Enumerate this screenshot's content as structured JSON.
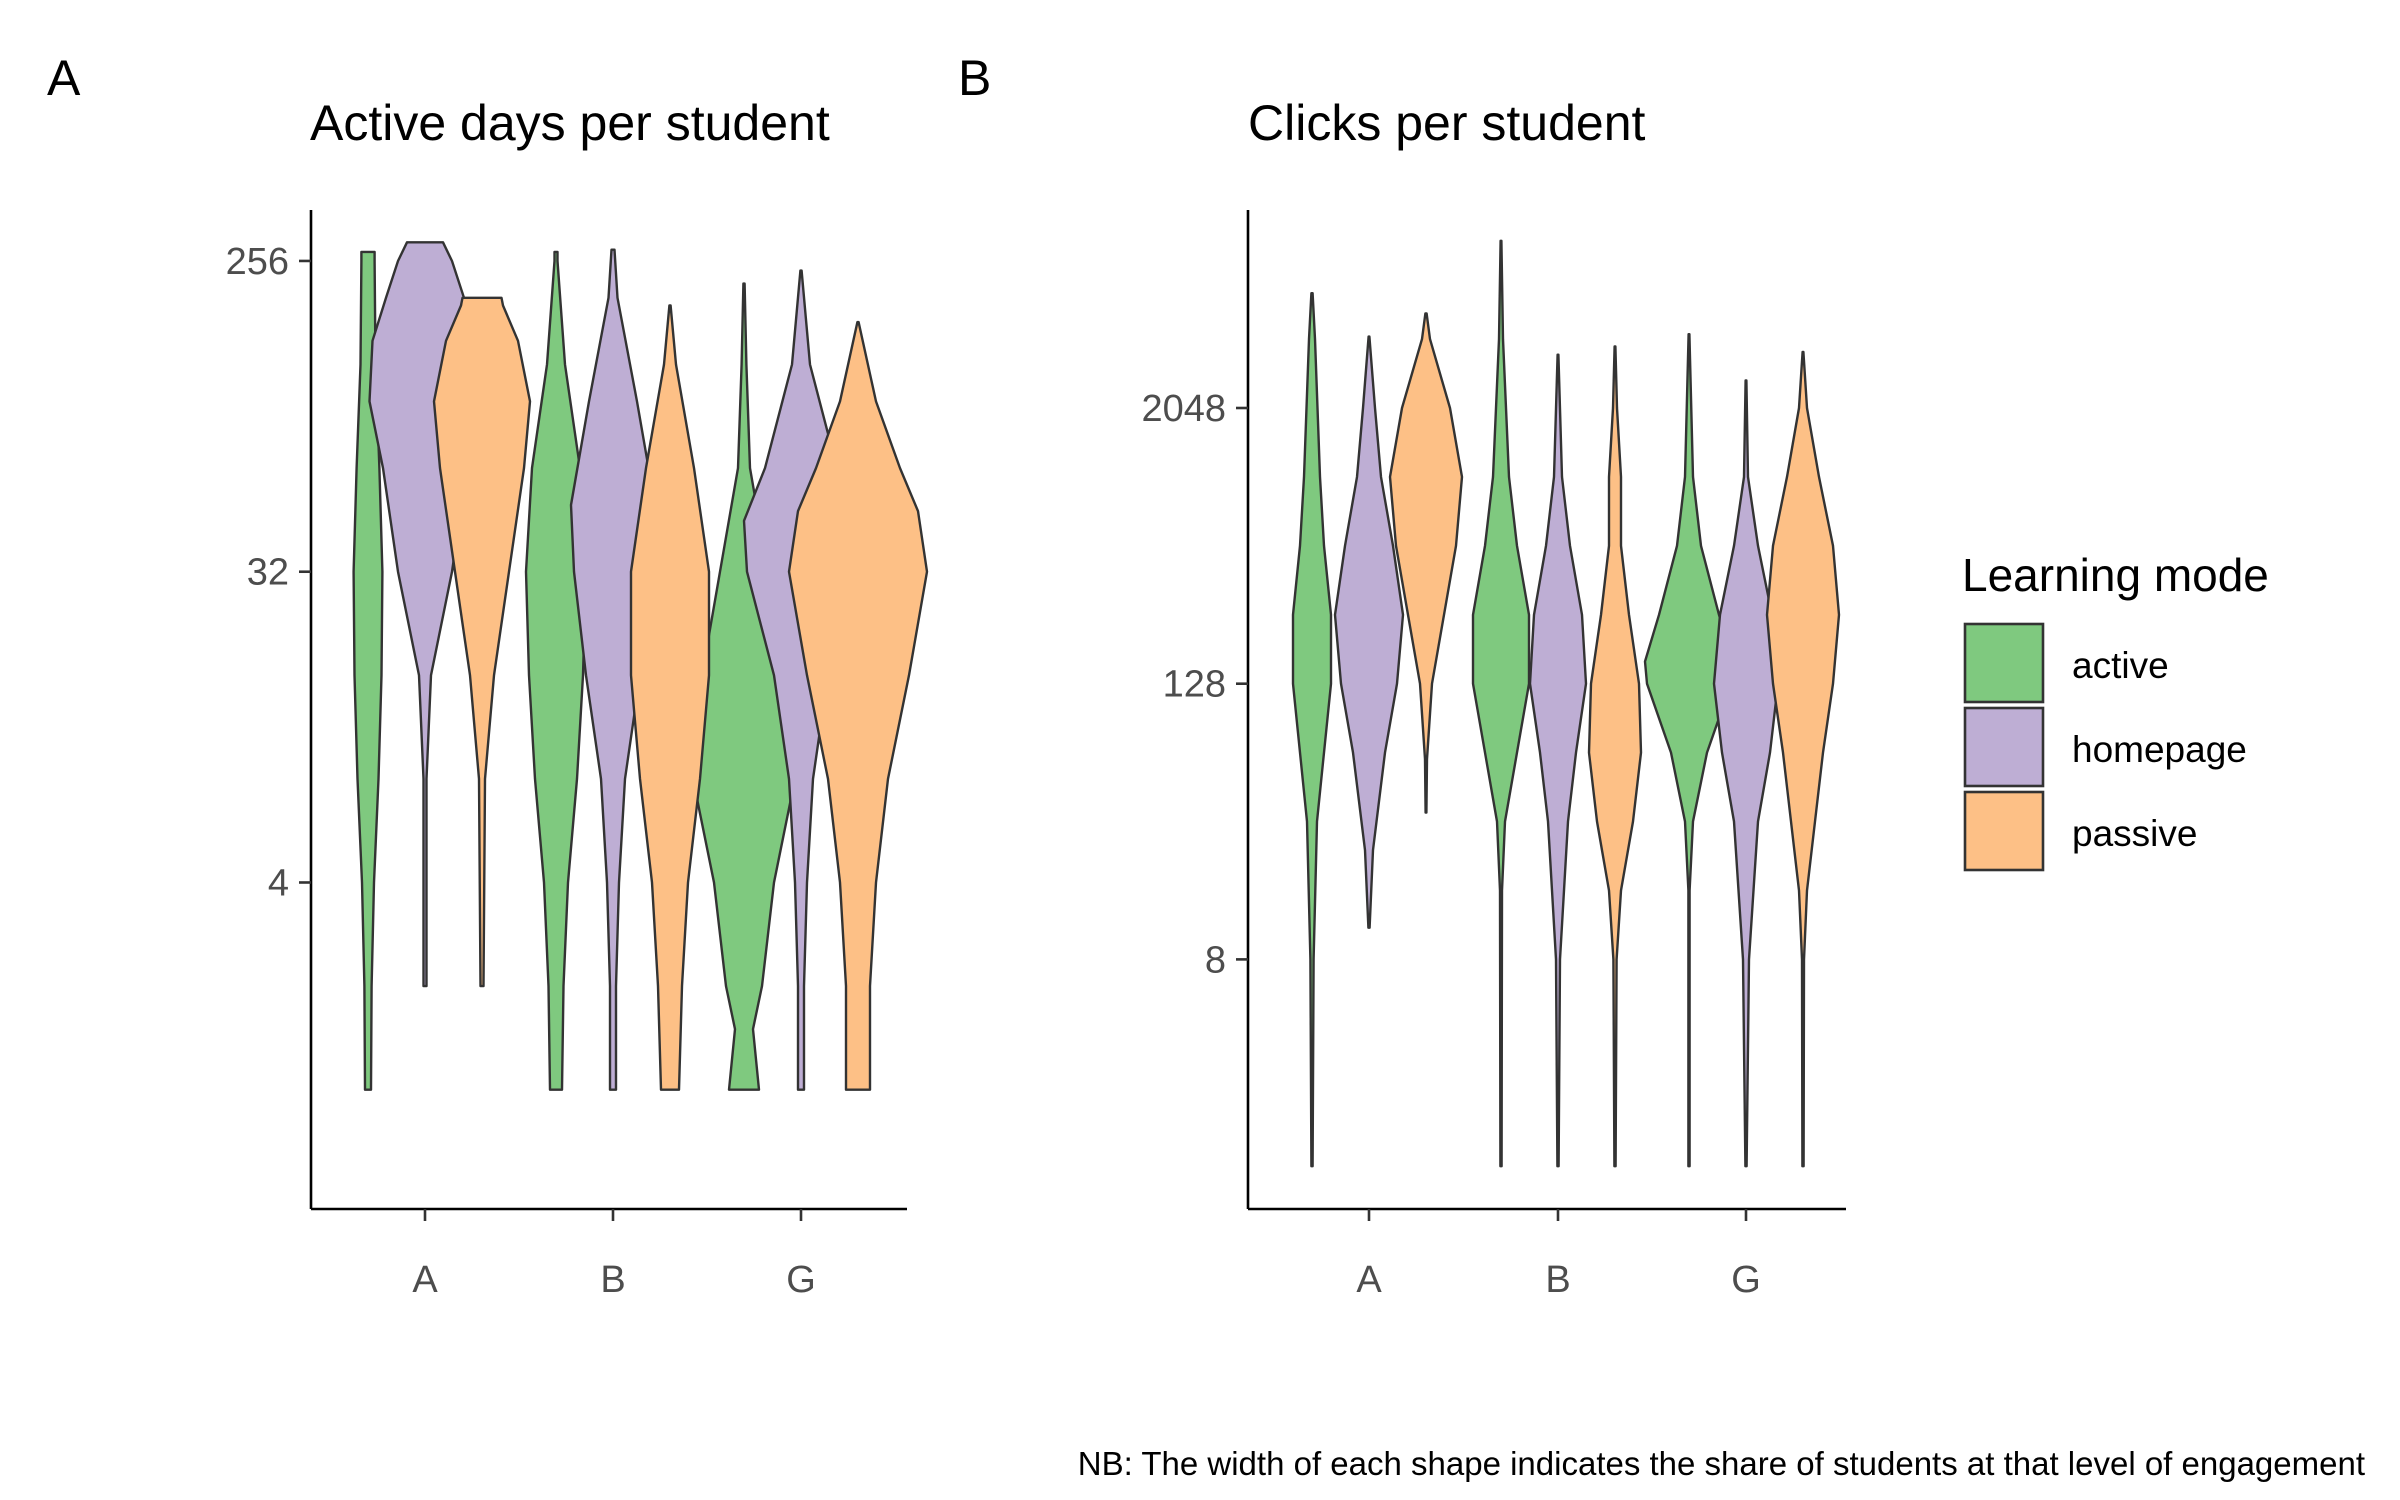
{
  "chart_data": [
    {
      "type": "violin",
      "panel_letter": "A",
      "title": "Active days per student",
      "xlabel": "",
      "ylabel": "",
      "y_scale": "log2",
      "y_ticks": [
        4,
        32,
        256
      ],
      "y_tick_labels": [
        "4",
        "32",
        "256"
      ],
      "ylim": [
        0.45,
        360
      ],
      "categories": [
        "A",
        "B",
        "G"
      ],
      "series": [
        {
          "name": "active",
          "violins": [
            {
              "group": "A",
              "min": 1,
              "max": 272,
              "shape": [
                [
                  1,
                  0.1
                ],
                [
                  2,
                  0.12
                ],
                [
                  4,
                  0.2
                ],
                [
                  8,
                  0.35
                ],
                [
                  16,
                  0.45
                ],
                [
                  32,
                  0.48
                ],
                [
                  64,
                  0.38
                ],
                [
                  128,
                  0.25
                ],
                [
                  256,
                  0.22
                ],
                [
                  272,
                  0.22
                ]
              ]
            },
            {
              "group": "B",
              "min": 1,
              "max": 272,
              "shape": [
                [
                  1,
                  0.2
                ],
                [
                  2,
                  0.25
                ],
                [
                  4,
                  0.4
                ],
                [
                  8,
                  0.7
                ],
                [
                  16,
                  0.9
                ],
                [
                  32,
                  1.0
                ],
                [
                  64,
                  0.8
                ],
                [
                  128,
                  0.3
                ],
                [
                  256,
                  0.05
                ],
                [
                  272,
                  0.05
                ]
              ]
            },
            {
              "group": "G",
              "min": 1,
              "max": 220,
              "shape": [
                [
                  1,
                  0.5
                ],
                [
                  1.5,
                  0.3
                ],
                [
                  2,
                  0.6
                ],
                [
                  4,
                  1.0
                ],
                [
                  8,
                  1.7
                ],
                [
                  12,
                  1.8
                ],
                [
                  16,
                  1.4
                ],
                [
                  32,
                  0.8
                ],
                [
                  64,
                  0.2
                ],
                [
                  128,
                  0.08
                ],
                [
                  220,
                  0.02
                ]
              ]
            }
          ]
        },
        {
          "name": "homepage",
          "violins": [
            {
              "group": "A",
              "min": 2,
              "max": 290,
              "shape": [
                [
                  2,
                  0.05
                ],
                [
                  8,
                  0.05
                ],
                [
                  16,
                  0.2
                ],
                [
                  32,
                  0.9
                ],
                [
                  64,
                  1.4
                ],
                [
                  100,
                  1.85
                ],
                [
                  150,
                  1.75
                ],
                [
                  200,
                  1.3
                ],
                [
                  256,
                  0.9
                ],
                [
                  290,
                  0.6
                ]
              ]
            },
            {
              "group": "B",
              "min": 1,
              "max": 276,
              "shape": [
                [
                  1,
                  0.1
                ],
                [
                  2,
                  0.1
                ],
                [
                  4,
                  0.2
                ],
                [
                  8,
                  0.4
                ],
                [
                  16,
                  0.9
                ],
                [
                  32,
                  1.3
                ],
                [
                  50,
                  1.4
                ],
                [
                  100,
                  0.8
                ],
                [
                  200,
                  0.15
                ],
                [
                  276,
                  0.05
                ]
              ]
            },
            {
              "group": "G",
              "min": 1,
              "max": 240,
              "shape": [
                [
                  1,
                  0.1
                ],
                [
                  2,
                  0.1
                ],
                [
                  4,
                  0.2
                ],
                [
                  8,
                  0.4
                ],
                [
                  16,
                  0.9
                ],
                [
                  32,
                  1.8
                ],
                [
                  45,
                  1.9
                ],
                [
                  64,
                  1.2
                ],
                [
                  128,
                  0.3
                ],
                [
                  240,
                  0.02
                ]
              ]
            }
          ]
        },
        {
          "name": "passive",
          "violins": [
            {
              "group": "A",
              "min": 2,
              "max": 200,
              "shape": [
                [
                  2,
                  0.05
                ],
                [
                  8,
                  0.1
                ],
                [
                  16,
                  0.4
                ],
                [
                  32,
                  0.9
                ],
                [
                  64,
                  1.4
                ],
                [
                  100,
                  1.6
                ],
                [
                  150,
                  1.2
                ],
                [
                  190,
                  0.7
                ],
                [
                  200,
                  0.65
                ]
              ]
            },
            {
              "group": "B",
              "min": 1,
              "max": 190,
              "shape": [
                [
                  1,
                  0.3
                ],
                [
                  2,
                  0.4
                ],
                [
                  4,
                  0.6
                ],
                [
                  8,
                  1.0
                ],
                [
                  16,
                  1.3
                ],
                [
                  32,
                  1.3
                ],
                [
                  64,
                  0.8
                ],
                [
                  128,
                  0.2
                ],
                [
                  190,
                  0.02
                ]
              ]
            },
            {
              "group": "G",
              "min": 1,
              "max": 170,
              "shape": [
                [
                  1,
                  0.4
                ],
                [
                  2,
                  0.4
                ],
                [
                  4,
                  0.6
                ],
                [
                  8,
                  1.0
                ],
                [
                  16,
                  1.7
                ],
                [
                  32,
                  2.3
                ],
                [
                  48,
                  2.0
                ],
                [
                  64,
                  1.4
                ],
                [
                  100,
                  0.6
                ],
                [
                  170,
                  0.02
                ]
              ]
            }
          ]
        }
      ]
    },
    {
      "type": "violin",
      "panel_letter": "B",
      "title": "Clicks per student",
      "xlabel": "",
      "ylabel": "",
      "y_scale": "log2",
      "y_ticks": [
        8,
        128,
        2048
      ],
      "y_tick_labels": [
        "8",
        "128",
        "2048"
      ],
      "ylim": [
        0.65,
        15000
      ],
      "categories": [
        "A",
        "B",
        "G"
      ],
      "series": [
        {
          "name": "active",
          "violins": [
            {
              "group": "A",
              "min": 1,
              "max": 6500,
              "shape": [
                [
                  1,
                  0.03
                ],
                [
                  8,
                  0.08
                ],
                [
                  32,
                  0.25
                ],
                [
                  64,
                  0.6
                ],
                [
                  128,
                  0.95
                ],
                [
                  256,
                  0.95
                ],
                [
                  512,
                  0.6
                ],
                [
                  1024,
                  0.4
                ],
                [
                  4096,
                  0.15
                ],
                [
                  6500,
                  0.03
                ]
              ]
            },
            {
              "group": "B",
              "min": 1,
              "max": 11000,
              "shape": [
                [
                  1,
                  0.03
                ],
                [
                  16,
                  0.05
                ],
                [
                  32,
                  0.2
                ],
                [
                  64,
                  0.8
                ],
                [
                  128,
                  1.4
                ],
                [
                  256,
                  1.4
                ],
                [
                  512,
                  0.8
                ],
                [
                  1024,
                  0.4
                ],
                [
                  4096,
                  0.1
                ],
                [
                  11000,
                  0.02
                ]
              ]
            },
            {
              "group": "G",
              "min": 1,
              "max": 4300,
              "shape": [
                [
                  1,
                  0.03
                ],
                [
                  16,
                  0.03
                ],
                [
                  32,
                  0.2
                ],
                [
                  64,
                  0.9
                ],
                [
                  128,
                  2.1
                ],
                [
                  160,
                  2.2
                ],
                [
                  256,
                  1.5
                ],
                [
                  512,
                  0.6
                ],
                [
                  1024,
                  0.2
                ],
                [
                  4300,
                  0.02
                ]
              ]
            }
          ]
        },
        {
          "name": "homepage",
          "violins": [
            {
              "group": "A",
              "min": 11,
              "max": 4200,
              "shape": [
                [
                  11,
                  0.03
                ],
                [
                  24,
                  0.2
                ],
                [
                  64,
                  0.8
                ],
                [
                  128,
                  1.4
                ],
                [
                  256,
                  1.7
                ],
                [
                  512,
                  1.2
                ],
                [
                  1024,
                  0.6
                ],
                [
                  2048,
                  0.3
                ],
                [
                  4200,
                  0.02
                ]
              ]
            },
            {
              "group": "B",
              "min": 1,
              "max": 3500,
              "shape": [
                [
                  1,
                  0.03
                ],
                [
                  8,
                  0.1
                ],
                [
                  32,
                  0.5
                ],
                [
                  64,
                  0.9
                ],
                [
                  128,
                  1.4
                ],
                [
                  256,
                  1.2
                ],
                [
                  512,
                  0.6
                ],
                [
                  1024,
                  0.2
                ],
                [
                  3500,
                  0.02
                ]
              ]
            },
            {
              "group": "G",
              "min": 1,
              "max": 2700,
              "shape": [
                [
                  1,
                  0.03
                ],
                [
                  8,
                  0.15
                ],
                [
                  32,
                  0.6
                ],
                [
                  64,
                  1.2
                ],
                [
                  128,
                  1.6
                ],
                [
                  256,
                  1.3
                ],
                [
                  512,
                  0.6
                ],
                [
                  1024,
                  0.1
                ],
                [
                  2700,
                  0.02
                ]
              ]
            }
          ]
        },
        {
          "name": "passive",
          "violins": [
            {
              "group": "A",
              "min": 35,
              "max": 5300,
              "shape": [
                [
                  35,
                  0.02
                ],
                [
                  60,
                  0.05
                ],
                [
                  128,
                  0.3
                ],
                [
                  256,
                  0.9
                ],
                [
                  512,
                  1.5
                ],
                [
                  1024,
                  1.8
                ],
                [
                  2048,
                  1.2
                ],
                [
                  4096,
                  0.2
                ],
                [
                  5300,
                  0.03
                ]
              ]
            },
            {
              "group": "B",
              "min": 1,
              "max": 3800,
              "shape": [
                [
                  1,
                  0.03
                ],
                [
                  8,
                  0.08
                ],
                [
                  16,
                  0.3
                ],
                [
                  32,
                  0.9
                ],
                [
                  64,
                  1.3
                ],
                [
                  128,
                  1.2
                ],
                [
                  256,
                  0.7
                ],
                [
                  512,
                  0.3
                ],
                [
                  1024,
                  0.3
                ],
                [
                  2048,
                  0.1
                ],
                [
                  3800,
                  0.02
                ]
              ]
            },
            {
              "group": "G",
              "min": 1,
              "max": 3600,
              "shape": [
                [
                  1,
                  0.03
                ],
                [
                  8,
                  0.05
                ],
                [
                  16,
                  0.2
                ],
                [
                  32,
                  0.6
                ],
                [
                  64,
                  1.0
                ],
                [
                  128,
                  1.5
                ],
                [
                  256,
                  1.8
                ],
                [
                  512,
                  1.5
                ],
                [
                  1024,
                  0.8
                ],
                [
                  2048,
                  0.2
                ],
                [
                  3600,
                  0.02
                ]
              ]
            }
          ]
        }
      ]
    }
  ],
  "legend": {
    "title": "Learning mode",
    "placement": "right",
    "items": [
      {
        "label": "active",
        "color": "#7fc97f"
      },
      {
        "label": "homepage",
        "color": "#beaed4"
      },
      {
        "label": "passive",
        "color": "#fdc086"
      }
    ]
  },
  "note": "NB: The width of each shape indicates the share of students at that level of engagement"
}
